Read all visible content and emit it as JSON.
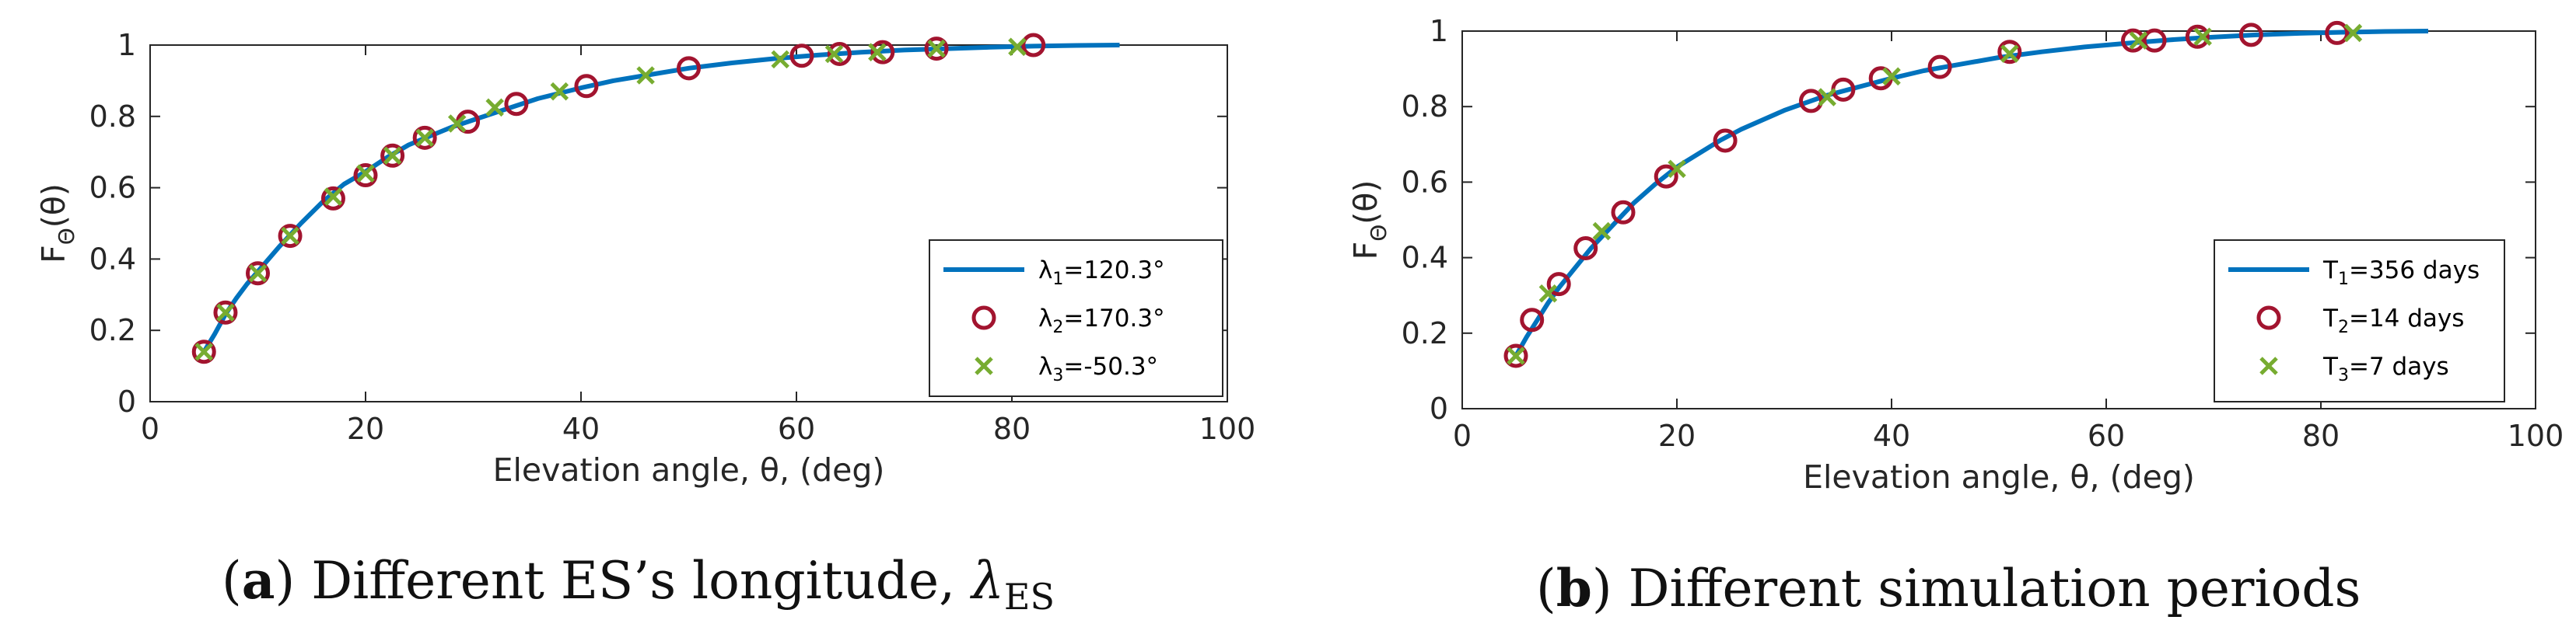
{
  "chart_data": [
    {
      "type": "line",
      "panel_label": "a",
      "caption": "Different ES’s longitude, ",
      "caption_symbol": "λ",
      "caption_subscript": "ES",
      "xlabel": "Elevation angle, θ, (deg)",
      "ylabel": "F",
      "ylabel_subscript": "Θ",
      "ylabel_suffix": "(θ)",
      "xlim": [
        0,
        100
      ],
      "ylim": [
        0,
        1
      ],
      "xticks": [
        0,
        20,
        40,
        60,
        80,
        100
      ],
      "yticks": [
        0,
        0.2,
        0.4,
        0.6,
        0.8,
        1
      ],
      "legend_position": "bottom-right",
      "series": [
        {
          "name": "λ1=120.3°",
          "label_main": "λ",
          "label_sub": "1",
          "label_rest": "=120.3°",
          "style": "line",
          "color": "#0072BD",
          "x": [
            5,
            6,
            7,
            8,
            9,
            10,
            12,
            14,
            16,
            18,
            20,
            22,
            24,
            26,
            28,
            30,
            32,
            34,
            36,
            38,
            40,
            43,
            46,
            50,
            54,
            58,
            62,
            66,
            70,
            74,
            78,
            82,
            86,
            90
          ],
          "y": [
            0.14,
            0.19,
            0.245,
            0.29,
            0.33,
            0.365,
            0.435,
            0.5,
            0.56,
            0.61,
            0.645,
            0.685,
            0.72,
            0.745,
            0.77,
            0.79,
            0.81,
            0.83,
            0.85,
            0.865,
            0.88,
            0.9,
            0.915,
            0.935,
            0.95,
            0.962,
            0.972,
            0.98,
            0.986,
            0.99,
            0.994,
            0.997,
            0.999,
            1.0
          ]
        },
        {
          "name": "λ2=170.3°",
          "label_main": "λ",
          "label_sub": "2",
          "label_rest": "=170.3°",
          "style": "circle",
          "color": "#A2142F",
          "x": [
            5,
            7,
            10,
            13,
            17,
            20,
            22.5,
            25.5,
            29.5,
            34,
            40.5,
            50,
            60.5,
            64,
            68,
            73,
            82
          ],
          "y": [
            0.14,
            0.25,
            0.36,
            0.465,
            0.57,
            0.635,
            0.69,
            0.74,
            0.785,
            0.835,
            0.885,
            0.935,
            0.97,
            0.975,
            0.98,
            0.99,
            1.0
          ]
        },
        {
          "name": "λ3=-50.3°",
          "label_main": "λ",
          "label_sub": "3",
          "label_rest": "=-50.3°",
          "style": "x",
          "color": "#77AC30",
          "x": [
            5,
            7,
            10,
            13,
            17,
            20,
            22.5,
            25.5,
            28.5,
            32,
            38,
            46,
            58.5,
            63.5,
            67.5,
            73,
            80.5
          ],
          "y": [
            0.14,
            0.25,
            0.36,
            0.465,
            0.575,
            0.64,
            0.69,
            0.74,
            0.78,
            0.825,
            0.87,
            0.915,
            0.96,
            0.975,
            0.98,
            0.99,
            0.995
          ]
        }
      ]
    },
    {
      "type": "line",
      "panel_label": "b",
      "caption": "Different simulation periods",
      "xlabel": "Elevation angle, θ, (deg)",
      "ylabel": "F",
      "ylabel_subscript": "Θ",
      "ylabel_suffix": "(θ)",
      "xlim": [
        0,
        100
      ],
      "ylim": [
        0,
        1
      ],
      "xticks": [
        0,
        20,
        40,
        60,
        80,
        100
      ],
      "yticks": [
        0,
        0.2,
        0.4,
        0.6,
        0.8,
        1
      ],
      "legend_position": "bottom-right",
      "series": [
        {
          "name": "T1=356 days",
          "label_main": "T",
          "label_sub": "1",
          "label_rest": "=356 days",
          "style": "line",
          "color": "#0072BD",
          "x": [
            5,
            6,
            7,
            8,
            9,
            10,
            12,
            14,
            16,
            18,
            20,
            22,
            24,
            26,
            28,
            30,
            32,
            34,
            36,
            38,
            40,
            43,
            46,
            50,
            54,
            58,
            62,
            66,
            70,
            74,
            78,
            82,
            86,
            90
          ],
          "y": [
            0.14,
            0.19,
            0.235,
            0.28,
            0.32,
            0.355,
            0.425,
            0.485,
            0.545,
            0.595,
            0.64,
            0.675,
            0.71,
            0.74,
            0.765,
            0.79,
            0.81,
            0.83,
            0.845,
            0.86,
            0.875,
            0.895,
            0.91,
            0.93,
            0.945,
            0.958,
            0.968,
            0.977,
            0.984,
            0.99,
            0.994,
            0.997,
            0.999,
            1.0
          ]
        },
        {
          "name": "T2=14 days",
          "label_main": "T",
          "label_sub": "2",
          "label_rest": "=14 days",
          "style": "circle",
          "color": "#A2142F",
          "x": [
            5,
            6.5,
            9,
            11.5,
            15,
            19,
            24.5,
            32.5,
            35.5,
            39,
            44.5,
            51,
            62.5,
            64.5,
            68.5,
            73.5,
            81.5
          ],
          "y": [
            0.14,
            0.235,
            0.33,
            0.425,
            0.52,
            0.615,
            0.71,
            0.815,
            0.845,
            0.875,
            0.905,
            0.945,
            0.975,
            0.975,
            0.985,
            0.99,
            0.995
          ]
        },
        {
          "name": "T3=7 days",
          "label_main": "T",
          "label_sub": "3",
          "label_rest": "=7 days",
          "style": "x",
          "color": "#77AC30",
          "x": [
            5,
            8,
            13,
            20,
            34,
            40,
            51,
            63,
            69,
            83
          ],
          "y": [
            0.14,
            0.305,
            0.47,
            0.635,
            0.825,
            0.88,
            0.94,
            0.975,
            0.985,
            0.995
          ]
        }
      ]
    }
  ]
}
